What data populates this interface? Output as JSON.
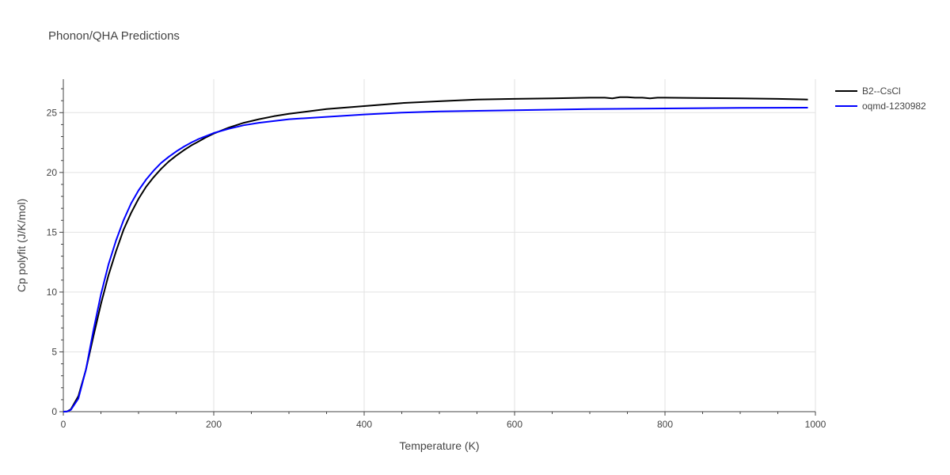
{
  "chart_data": {
    "type": "line",
    "title": "Phonon/QHA Predictions",
    "xlabel": "Temperature (K)",
    "ylabel": "Cp polyfit (J/K/mol)",
    "xlim": [
      0,
      1000
    ],
    "ylim": [
      0,
      27.8
    ],
    "xticks": [
      0,
      200,
      400,
      600,
      800,
      1000
    ],
    "yticks": [
      0,
      5,
      10,
      15,
      20,
      25
    ],
    "grid": true,
    "legend_position": "top-right",
    "series": [
      {
        "name": "B2--CsCl",
        "color": "#000000",
        "points": [
          [
            0,
            0
          ],
          [
            5,
            0.02
          ],
          [
            10,
            0.2
          ],
          [
            20,
            1.3
          ],
          [
            30,
            3.5
          ],
          [
            40,
            6.3
          ],
          [
            50,
            9.0
          ],
          [
            60,
            11.4
          ],
          [
            70,
            13.4
          ],
          [
            80,
            15.2
          ],
          [
            90,
            16.6
          ],
          [
            100,
            17.8
          ],
          [
            110,
            18.8
          ],
          [
            120,
            19.6
          ],
          [
            130,
            20.3
          ],
          [
            140,
            20.9
          ],
          [
            150,
            21.4
          ],
          [
            160,
            21.85
          ],
          [
            170,
            22.25
          ],
          [
            180,
            22.6
          ],
          [
            190,
            22.95
          ],
          [
            200,
            23.25
          ],
          [
            220,
            23.75
          ],
          [
            240,
            24.15
          ],
          [
            260,
            24.45
          ],
          [
            280,
            24.7
          ],
          [
            300,
            24.9
          ],
          [
            350,
            25.3
          ],
          [
            400,
            25.55
          ],
          [
            450,
            25.8
          ],
          [
            500,
            25.95
          ],
          [
            550,
            26.1
          ],
          [
            600,
            26.15
          ],
          [
            650,
            26.2
          ],
          [
            700,
            26.25
          ],
          [
            720,
            26.25
          ],
          [
            730,
            26.2
          ],
          [
            740,
            26.3
          ],
          [
            750,
            26.3
          ],
          [
            760,
            26.25
          ],
          [
            770,
            26.25
          ],
          [
            780,
            26.2
          ],
          [
            790,
            26.25
          ],
          [
            800,
            26.25
          ],
          [
            850,
            26.22
          ],
          [
            900,
            26.2
          ],
          [
            950,
            26.15
          ],
          [
            990,
            26.1
          ]
        ]
      },
      {
        "name": "oqmd-1230982",
        "color": "#0000ff",
        "points": [
          [
            0,
            0
          ],
          [
            5,
            0.02
          ],
          [
            10,
            0.15
          ],
          [
            20,
            1.1
          ],
          [
            30,
            3.5
          ],
          [
            40,
            6.8
          ],
          [
            50,
            9.8
          ],
          [
            60,
            12.3
          ],
          [
            70,
            14.3
          ],
          [
            80,
            16.0
          ],
          [
            90,
            17.4
          ],
          [
            100,
            18.5
          ],
          [
            110,
            19.4
          ],
          [
            120,
            20.15
          ],
          [
            130,
            20.8
          ],
          [
            140,
            21.3
          ],
          [
            150,
            21.75
          ],
          [
            160,
            22.15
          ],
          [
            170,
            22.5
          ],
          [
            180,
            22.8
          ],
          [
            190,
            23.05
          ],
          [
            200,
            23.3
          ],
          [
            220,
            23.65
          ],
          [
            240,
            23.95
          ],
          [
            260,
            24.15
          ],
          [
            280,
            24.3
          ],
          [
            300,
            24.45
          ],
          [
            350,
            24.65
          ],
          [
            400,
            24.85
          ],
          [
            450,
            25.0
          ],
          [
            500,
            25.1
          ],
          [
            550,
            25.15
          ],
          [
            600,
            25.2
          ],
          [
            700,
            25.3
          ],
          [
            800,
            25.35
          ],
          [
            900,
            25.4
          ],
          [
            990,
            25.42
          ]
        ]
      }
    ]
  }
}
